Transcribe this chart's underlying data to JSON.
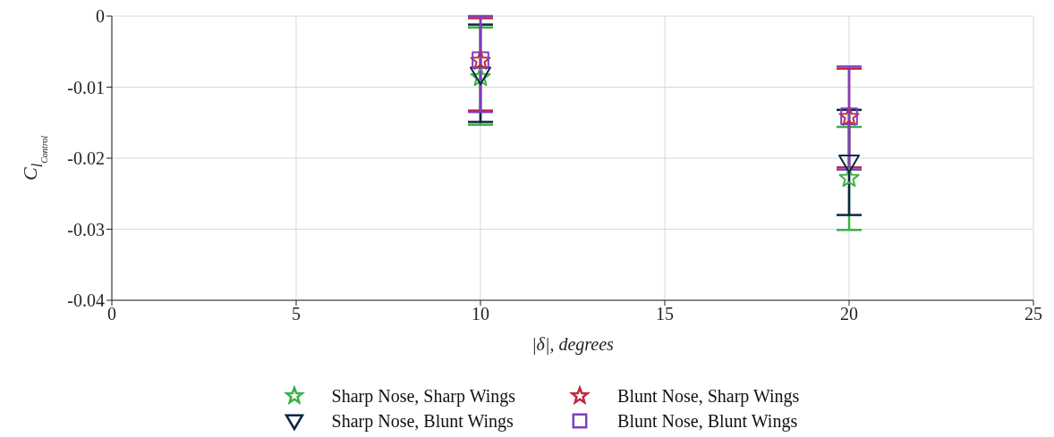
{
  "chart_data": {
    "type": "scatter",
    "xlabel": "|δ|, degrees",
    "ylabel": "C$_{l}$$_{Control}$",
    "x": [
      10,
      20
    ],
    "xlim": [
      0,
      25
    ],
    "xticks": [
      0,
      5,
      10,
      15,
      20,
      25
    ],
    "ylim": [
      -0.04,
      0
    ],
    "yticks": [
      -0.04,
      -0.03,
      -0.02,
      -0.01,
      0
    ],
    "grid": true,
    "legend": "bottom",
    "series": [
      {
        "name": "Sharp Nose, Sharp Wings",
        "color": "#3cb043",
        "marker": "star",
        "values": [
          -0.0086,
          -0.0228
        ],
        "errors": [
          [
            -0.0153,
            -0.0016
          ],
          [
            -0.0301,
            -0.0156
          ]
        ]
      },
      {
        "name": "Sharp Nose, Blunt Wings",
        "color": "#0b2545",
        "marker": "triangle",
        "values": [
          -0.0082,
          -0.0206
        ],
        "errors": [
          [
            -0.0149,
            -0.0012
          ],
          [
            -0.028,
            -0.0132
          ]
        ]
      },
      {
        "name": "Blunt Nose, Sharp Wings",
        "color": "#c0283c",
        "marker": "star",
        "values": [
          -0.0063,
          -0.0142
        ],
        "errors": [
          [
            -0.0133,
            -0.0003
          ],
          [
            -0.0213,
            -0.0074
          ]
        ]
      },
      {
        "name": "Blunt Nose, Blunt Wings",
        "color": "#7e3fbf",
        "marker": "square",
        "values": [
          -0.0062,
          -0.0141
        ],
        "errors": [
          [
            -0.0135,
            0
          ],
          [
            -0.0216,
            -0.0071
          ]
        ]
      }
    ]
  }
}
